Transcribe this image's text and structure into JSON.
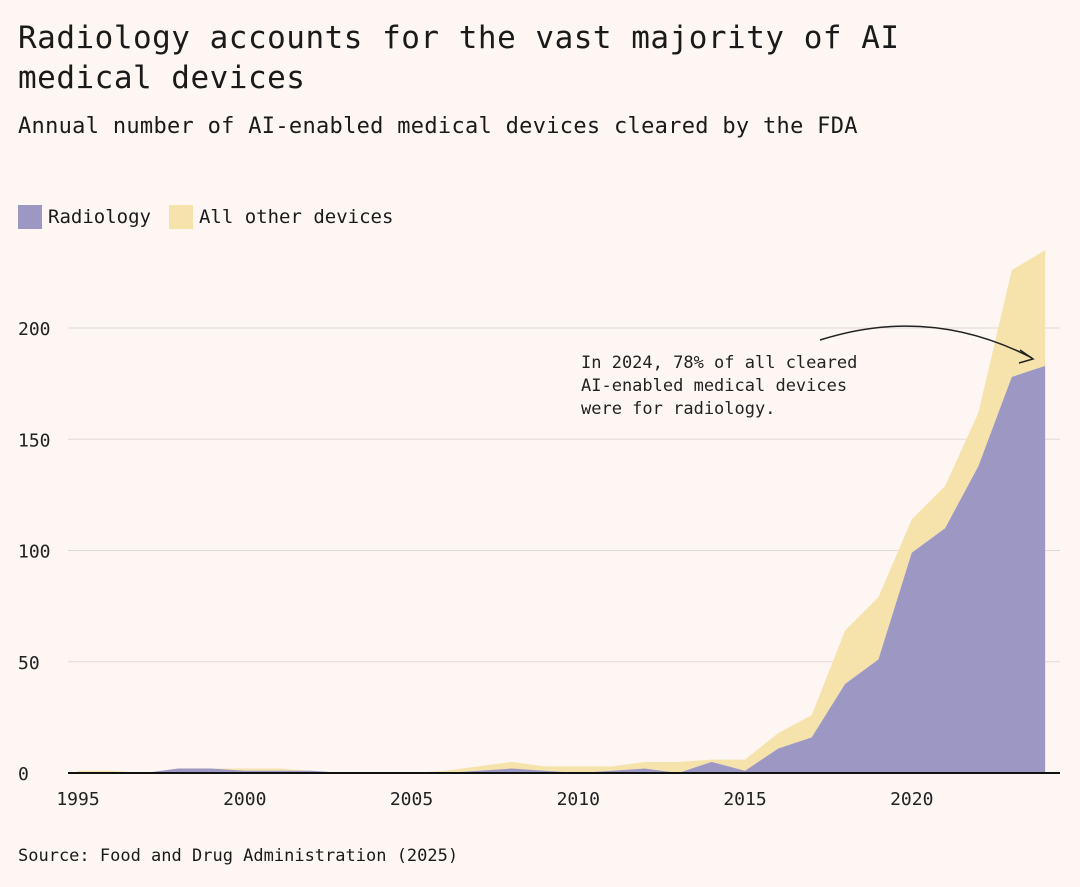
{
  "title": "Radiology accounts for the vast majority of AI medical devices",
  "subtitle": "Annual number of AI-enabled medical devices cleared by the FDA",
  "source": "Source: Food and Drug Administration (2025)",
  "colors": {
    "radiology": "#9c98c3",
    "other": "#f6e3ac",
    "background": "#fdf6f3"
  },
  "chart_data": {
    "type": "area",
    "stacked": true,
    "x": [
      1995,
      1996,
      1997,
      1998,
      1999,
      2000,
      2001,
      2002,
      2003,
      2004,
      2005,
      2006,
      2007,
      2008,
      2009,
      2010,
      2011,
      2012,
      2013,
      2014,
      2015,
      2016,
      2017,
      2018,
      2019,
      2020,
      2021,
      2022,
      2023,
      2024
    ],
    "series": [
      {
        "name": "Radiology",
        "values": [
          0,
          0,
          0,
          2,
          2,
          1,
          1,
          1,
          0,
          0,
          0,
          0,
          1,
          2,
          1,
          0,
          1,
          2,
          0,
          5,
          1,
          11,
          16,
          40,
          51,
          99,
          110,
          138,
          178,
          183
        ]
      },
      {
        "name": "All other devices",
        "values": [
          1,
          1,
          0,
          0,
          0,
          1,
          1,
          0,
          0,
          0,
          0,
          1,
          2,
          3,
          2,
          3,
          2,
          3,
          5,
          1,
          5,
          7,
          10,
          24,
          28,
          15,
          19,
          24,
          48,
          52
        ]
      }
    ],
    "xticks": [
      "1995",
      "2000",
      "2005",
      "2010",
      "2015",
      "2020"
    ],
    "yticks": [
      "0",
      "50",
      "100",
      "150",
      "200"
    ],
    "xlim": [
      1995,
      2024
    ],
    "ylim": [
      0,
      235
    ],
    "grid": "horizontal",
    "legend": "top-left",
    "annotation": [
      "In 2024, 78% of all cleared",
      "AI-enabled medical devices",
      "were for radiology."
    ]
  }
}
